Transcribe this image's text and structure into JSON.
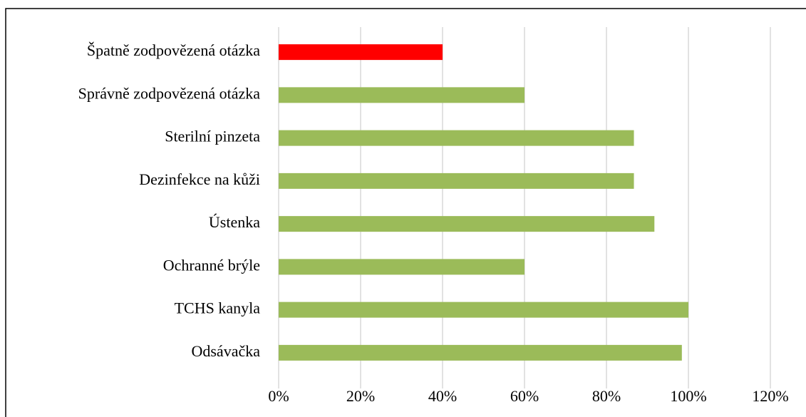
{
  "chart_data": {
    "type": "barh",
    "categories": [
      "Špatně zodpovězená otázka",
      "Správně zodpovězená otázka",
      "Sterilní pinzeta",
      "Dezinfekce na kůži",
      "Ústenka",
      "Ochranné brýle",
      "TCHS kanyla",
      "Odsávačka"
    ],
    "values": [
      40,
      60,
      86.7,
      86.7,
      91.7,
      60,
      100,
      98.4
    ],
    "colors": [
      "#ff0000",
      "#9bbb59",
      "#9bbb59",
      "#9bbb59",
      "#9bbb59",
      "#9bbb59",
      "#9bbb59",
      "#9bbb59"
    ],
    "xlim": [
      0,
      120
    ],
    "xticks": [
      {
        "value": 0,
        "label": "0%"
      },
      {
        "value": 20,
        "label": "20%"
      },
      {
        "value": 40,
        "label": "40%"
      },
      {
        "value": 60,
        "label": "60%"
      },
      {
        "value": 80,
        "label": "80%"
      },
      {
        "value": 100,
        "label": "100%"
      },
      {
        "value": 120,
        "label": "120%"
      }
    ],
    "grid": true
  }
}
